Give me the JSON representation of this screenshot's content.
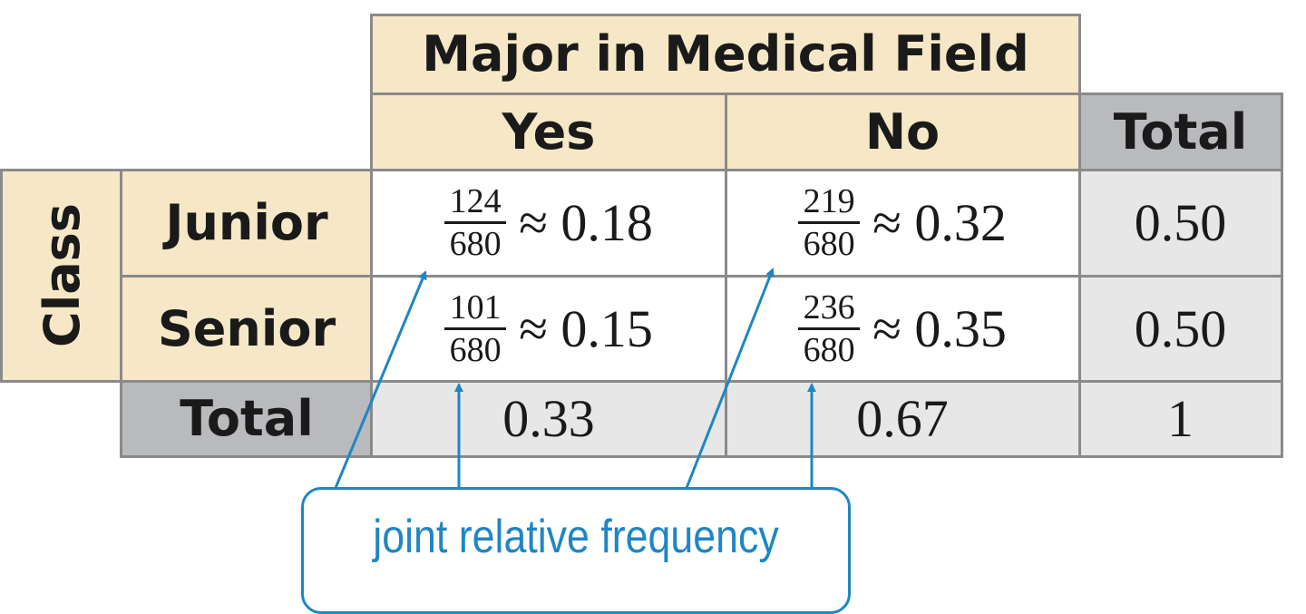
{
  "table": {
    "column_group_header": "Major in Medical Field",
    "row_group_header": "Class",
    "column_headers": [
      "Yes",
      "No"
    ],
    "total_label": "Total",
    "rows": [
      {
        "label": "Junior",
        "cells": [
          {
            "numerator": "124",
            "denominator": "680",
            "approx": "≈ 0.18"
          },
          {
            "numerator": "219",
            "denominator": "680",
            "approx": "≈ 0.32"
          }
        ],
        "total": "0.50"
      },
      {
        "label": "Senior",
        "cells": [
          {
            "numerator": "101",
            "denominator": "680",
            "approx": "≈ 0.15"
          },
          {
            "numerator": "236",
            "denominator": "680",
            "approx": "≈ 0.35"
          }
        ],
        "total": "0.50"
      }
    ],
    "column_totals": [
      "0.33",
      "0.67"
    ],
    "grand_total": "1"
  },
  "callout": {
    "label": "joint relative frequency",
    "color": "#1f86c3"
  },
  "colors": {
    "header_fill": "#f6e8c6",
    "total_fill": "#b9babd",
    "total_value_fill": "#e7e7e7",
    "grid": "#8a8a8a"
  }
}
